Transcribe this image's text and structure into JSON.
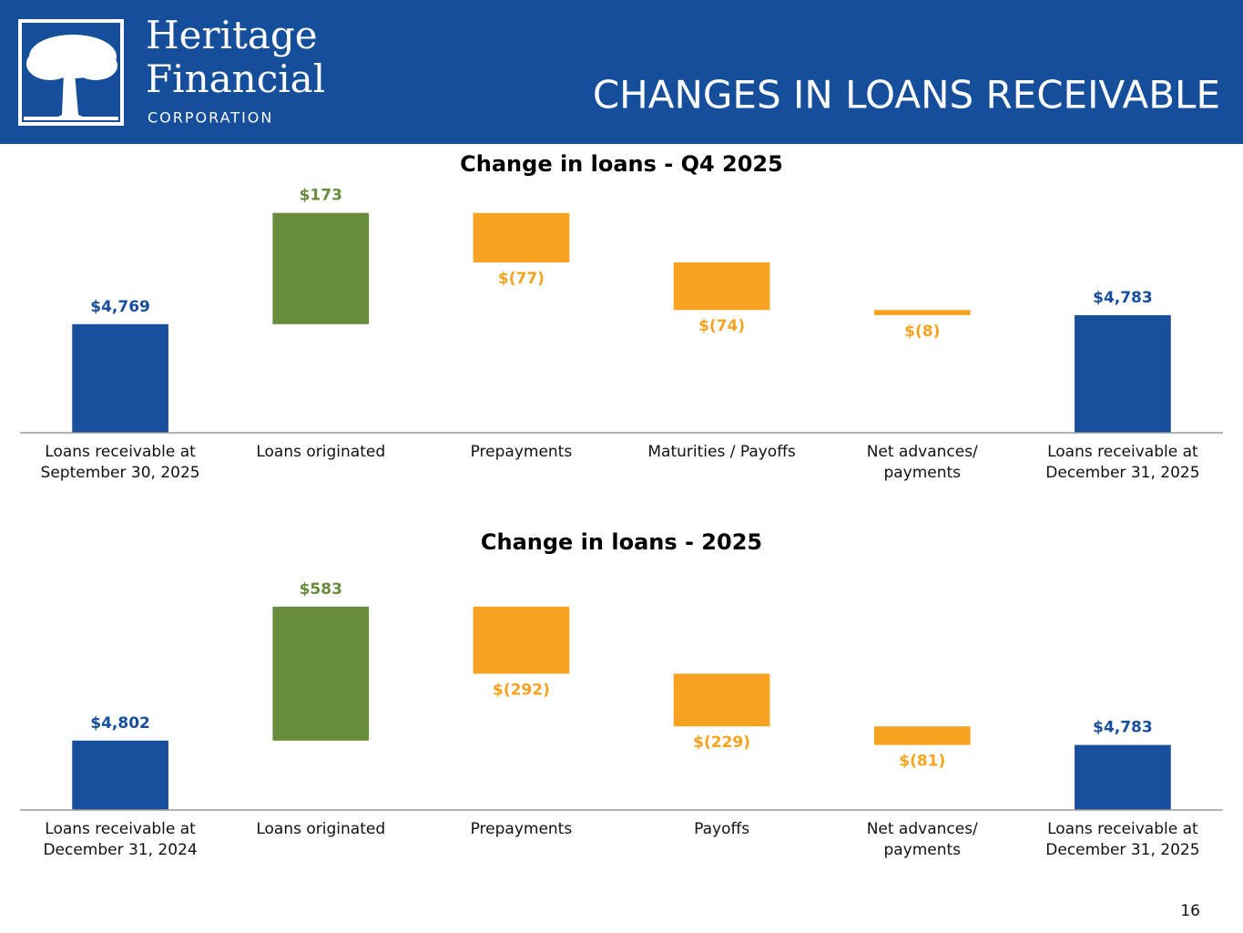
{
  "header": {
    "logo_line1": "Heritage",
    "logo_line2": "Financial",
    "logo_line3": "CORPORATION",
    "title": "CHANGES IN LOANS RECEIVABLE"
  },
  "chart_data": [
    {
      "type": "waterfall",
      "title": "Change in loans - Q4 2025",
      "categories": [
        "Loans receivable at\nSeptember 30, 2025",
        "Loans originated",
        "Prepayments",
        "Maturities / Payoffs",
        "Net advances/\npayments",
        "Loans receivable at\nDecember 31, 2025"
      ],
      "values": [
        4769,
        173,
        -77,
        -74,
        -8,
        4783
      ],
      "value_labels": [
        "$4,769",
        "$173",
        "$(77)",
        "$(74)",
        "$(8)",
        "$4,783"
      ],
      "colors": [
        "#174f9c",
        "#678c3c",
        "#f8a31f",
        "#f8a31f",
        "#f8a31f",
        "#174f9c"
      ],
      "ylim": [
        4600,
        4960
      ]
    },
    {
      "type": "waterfall",
      "title": "Change in loans - 2025",
      "categories": [
        "Loans receivable at\nDecember 31, 2024",
        "Loans originated",
        "Prepayments",
        "Payoffs",
        "Net advances/\npayments",
        "Loans receivable at\nDecember 31, 2025"
      ],
      "values": [
        4802,
        583,
        -292,
        -229,
        -81,
        4783
      ],
      "value_labels": [
        "$4,802",
        "$583",
        "$(292)",
        "$(229)",
        "$(81)",
        "$4,783"
      ],
      "colors": [
        "#174f9c",
        "#678c3c",
        "#f8a31f",
        "#f8a31f",
        "#f8a31f",
        "#174f9c"
      ],
      "ylim": [
        4500,
        5400
      ]
    }
  ],
  "page_number": "16"
}
